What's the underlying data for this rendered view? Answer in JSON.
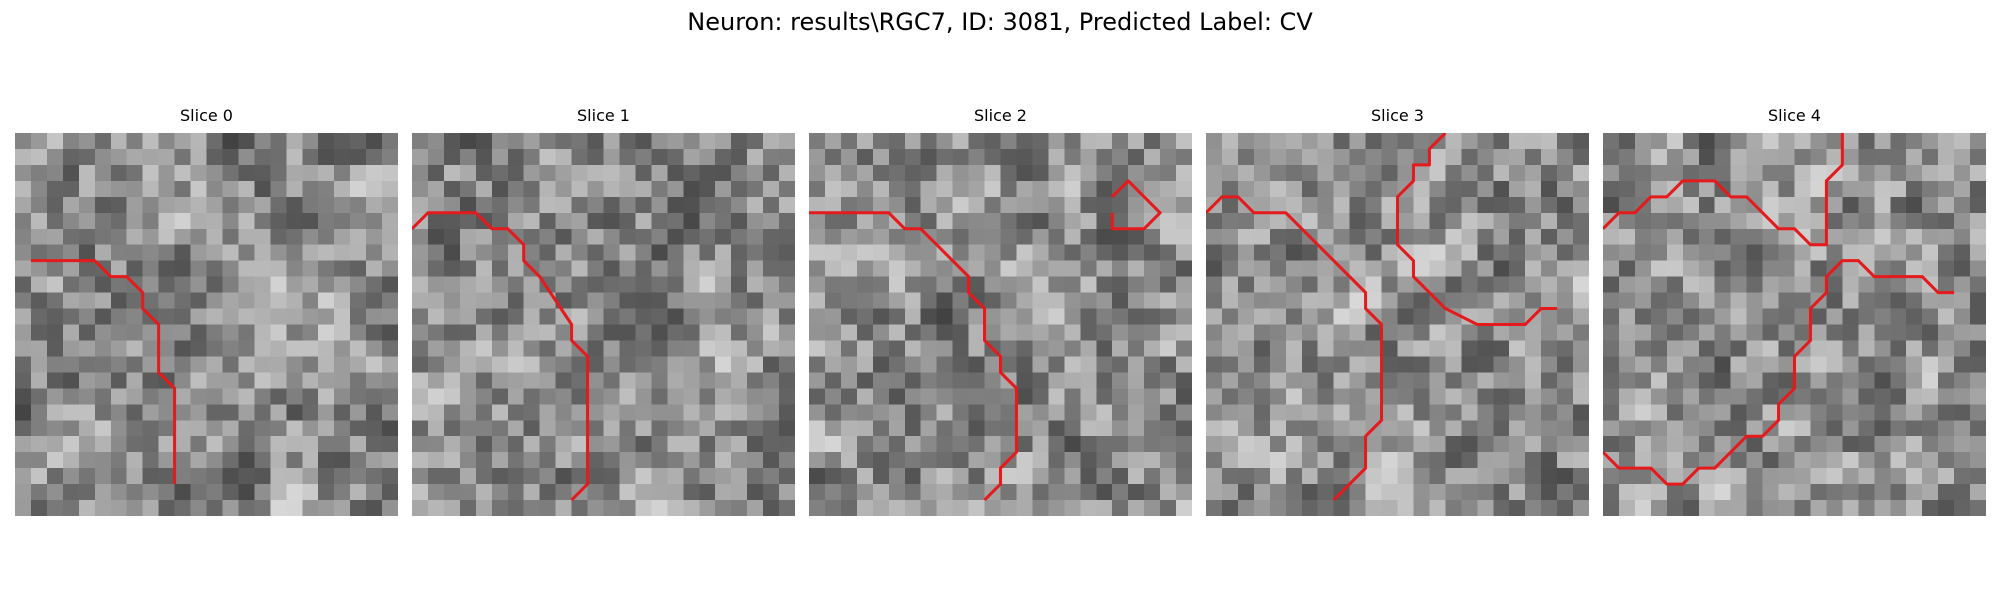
{
  "figure": {
    "title": "Neuron: results\\RGC7, ID: 3081, Predicted Label: CV"
  },
  "overlay": {
    "color": "#e41a1c"
  },
  "slices": [
    {
      "title": "Slice 0",
      "seed": 101,
      "contours": [
        [
          [
            1,
            8
          ],
          [
            5,
            8
          ],
          [
            6,
            9
          ],
          [
            7,
            9
          ],
          [
            8,
            10
          ],
          [
            8,
            11
          ],
          [
            9,
            12
          ],
          [
            9,
            15
          ],
          [
            10,
            16
          ],
          [
            10,
            22
          ]
        ]
      ]
    },
    {
      "title": "Slice 1",
      "seed": 202,
      "contours": [
        [
          [
            0,
            6
          ],
          [
            1,
            5
          ],
          [
            4,
            5
          ],
          [
            5,
            6
          ],
          [
            6,
            6
          ],
          [
            7,
            7
          ],
          [
            7,
            8
          ],
          [
            8,
            9
          ],
          [
            10,
            12
          ],
          [
            10,
            13
          ],
          [
            11,
            14
          ],
          [
            11,
            22
          ],
          [
            10,
            23
          ]
        ]
      ]
    },
    {
      "title": "Slice 2",
      "seed": 303,
      "contours": [
        [
          [
            0,
            5
          ],
          [
            5,
            5
          ],
          [
            6,
            6
          ],
          [
            7,
            6
          ],
          [
            8,
            7
          ],
          [
            9,
            8
          ],
          [
            10,
            9
          ],
          [
            10,
            10
          ],
          [
            11,
            11
          ],
          [
            11,
            13
          ],
          [
            12,
            14
          ],
          [
            12,
            15
          ],
          [
            13,
            16
          ],
          [
            13,
            20
          ],
          [
            12,
            21
          ],
          [
            12,
            22
          ],
          [
            11,
            23
          ]
        ],
        [
          [
            19,
            4
          ],
          [
            20,
            3
          ],
          [
            21,
            4
          ],
          [
            22,
            5
          ],
          [
            21,
            6
          ],
          [
            19,
            6
          ],
          [
            19,
            5
          ]
        ]
      ]
    },
    {
      "title": "Slice 3",
      "seed": 404,
      "contours": [
        [
          [
            0,
            5
          ],
          [
            1,
            4
          ],
          [
            2,
            4
          ],
          [
            3,
            5
          ],
          [
            5,
            5
          ],
          [
            7,
            7
          ],
          [
            8,
            8
          ],
          [
            9,
            9
          ],
          [
            10,
            10
          ],
          [
            10,
            11
          ],
          [
            11,
            12
          ],
          [
            11,
            18
          ],
          [
            10,
            19
          ],
          [
            10,
            21
          ],
          [
            9,
            22
          ],
          [
            8,
            23
          ]
        ],
        [
          [
            15,
            0
          ],
          [
            14,
            1
          ],
          [
            14,
            2
          ],
          [
            13,
            2
          ],
          [
            13,
            3
          ],
          [
            12,
            4
          ],
          [
            12,
            7
          ],
          [
            13,
            8
          ],
          [
            13,
            9
          ],
          [
            15,
            11
          ],
          [
            17,
            12
          ],
          [
            20,
            12
          ],
          [
            21,
            11
          ],
          [
            22,
            11
          ]
        ]
      ]
    },
    {
      "title": "Slice 4",
      "seed": 505,
      "contours": [
        [
          [
            0,
            6
          ],
          [
            1,
            5
          ],
          [
            2,
            5
          ],
          [
            3,
            4
          ],
          [
            4,
            4
          ],
          [
            5,
            3
          ],
          [
            7,
            3
          ],
          [
            8,
            4
          ],
          [
            9,
            4
          ],
          [
            10,
            5
          ],
          [
            11,
            6
          ],
          [
            12,
            6
          ],
          [
            13,
            7
          ],
          [
            14,
            7
          ],
          [
            14,
            6
          ],
          [
            14,
            3
          ],
          [
            15,
            2
          ],
          [
            15,
            0
          ]
        ],
        [
          [
            0,
            20
          ],
          [
            1,
            21
          ],
          [
            3,
            21
          ],
          [
            4,
            22
          ],
          [
            5,
            22
          ],
          [
            6,
            21
          ],
          [
            7,
            21
          ],
          [
            8,
            20
          ],
          [
            9,
            19
          ],
          [
            10,
            19
          ],
          [
            11,
            18
          ],
          [
            11,
            17
          ],
          [
            12,
            16
          ],
          [
            12,
            14
          ],
          [
            13,
            13
          ],
          [
            13,
            11
          ],
          [
            14,
            10
          ],
          [
            14,
            9
          ],
          [
            15,
            8
          ],
          [
            16,
            8
          ],
          [
            17,
            9
          ],
          [
            20,
            9
          ],
          [
            21,
            10
          ],
          [
            22,
            10
          ]
        ]
      ]
    }
  ]
}
